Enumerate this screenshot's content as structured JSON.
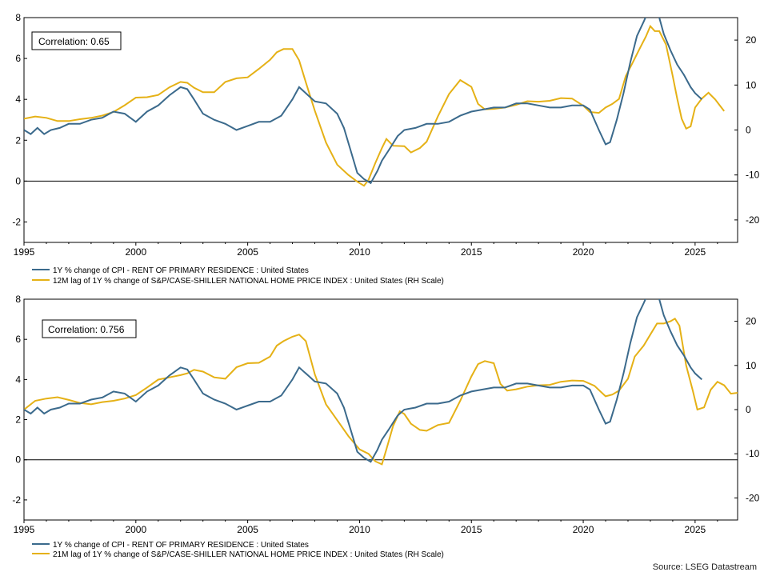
{
  "source": "Source: LSEG Datastream",
  "colors": {
    "cpi": "#3b6a8c",
    "hpi": "#e5b116"
  },
  "chart_data": [
    {
      "type": "line",
      "correlation_label": "Correlation: 0.65",
      "x_ticks": [
        "1995",
        "2000",
        "2005",
        "2010",
        "2015",
        "2020",
        "2025"
      ],
      "xlim": [
        1995,
        2026.9
      ],
      "ylim_left": [
        -3,
        8
      ],
      "ylim_right": [
        -25,
        25
      ],
      "yticks_left": [
        "-2",
        "0",
        "2",
        "4",
        "6",
        "8"
      ],
      "yticks_right": [
        "-20",
        "-10",
        "0",
        "10",
        "20"
      ],
      "zero_line": true,
      "legend_location": "bottom-left",
      "series": [
        {
          "name": "1Y % change of CPI - RENT OF PRIMARY RESIDENCE : United States",
          "axis": "left",
          "x": [
            1995.0,
            1995.3,
            1995.6,
            1995.9,
            1996.2,
            1996.6,
            1997.0,
            1997.5,
            1998.0,
            1998.5,
            1999.0,
            1999.5,
            2000.0,
            2000.5,
            2001.0,
            2001.5,
            2002.0,
            2002.3,
            2002.6,
            2003.0,
            2003.5,
            2004.0,
            2004.5,
            2005.0,
            2005.5,
            2006.0,
            2006.5,
            2007.0,
            2007.3,
            2007.7,
            2008.0,
            2008.5,
            2009.0,
            2009.3,
            2009.6,
            2009.9,
            2010.2,
            2010.5,
            2010.8,
            2011.0,
            2011.3,
            2011.7,
            2012.0,
            2012.5,
            2013.0,
            2013.5,
            2014.0,
            2014.5,
            2015.0,
            2015.5,
            2016.0,
            2016.5,
            2017.0,
            2017.5,
            2018.0,
            2018.5,
            2019.0,
            2019.5,
            2020.0,
            2020.3,
            2020.7,
            2021.0,
            2021.2,
            2021.5,
            2021.8,
            2022.1,
            2022.4,
            2022.7,
            2022.9,
            2023.0,
            2023.3,
            2023.6,
            2023.9,
            2024.2,
            2024.5,
            2024.8,
            2025.0,
            2025.3
          ],
          "y": [
            2.5,
            2.3,
            2.6,
            2.3,
            2.5,
            2.6,
            2.8,
            2.8,
            3.0,
            3.1,
            3.4,
            3.3,
            2.9,
            3.4,
            3.7,
            4.2,
            4.6,
            4.5,
            4.0,
            3.3,
            3.0,
            2.8,
            2.5,
            2.7,
            2.9,
            2.9,
            3.2,
            4.0,
            4.6,
            4.2,
            3.9,
            3.8,
            3.3,
            2.6,
            1.5,
            0.4,
            0.1,
            -0.1,
            0.5,
            1.0,
            1.5,
            2.2,
            2.5,
            2.6,
            2.8,
            2.8,
            2.9,
            3.2,
            3.4,
            3.5,
            3.6,
            3.6,
            3.8,
            3.8,
            3.7,
            3.6,
            3.6,
            3.7,
            3.7,
            3.5,
            2.5,
            1.8,
            1.9,
            3.0,
            4.3,
            5.8,
            7.1,
            7.8,
            8.3,
            8.5,
            8.4,
            7.2,
            6.4,
            5.7,
            5.2,
            4.6,
            4.3,
            4.0
          ]
        },
        {
          "name": "12M lag of 1Y % change of S&P/CASE-SHILLER NATIONAL HOME PRICE INDEX : United States (RH Scale)",
          "axis": "right",
          "x": [
            1995.0,
            1995.5,
            1996.0,
            1996.5,
            1997.0,
            1997.5,
            1998.0,
            1998.5,
            1999.0,
            1999.5,
            2000.0,
            2000.5,
            2001.0,
            2001.5,
            2002.0,
            2002.3,
            2002.6,
            2003.0,
            2003.5,
            2004.0,
            2004.5,
            2005.0,
            2005.5,
            2006.0,
            2006.3,
            2006.6,
            2007.0,
            2007.3,
            2007.6,
            2008.0,
            2008.5,
            2009.0,
            2009.5,
            2009.9,
            2010.2,
            2010.4,
            2010.7,
            2011.0,
            2011.2,
            2011.5,
            2012.0,
            2012.3,
            2012.7,
            2013.0,
            2013.5,
            2014.0,
            2014.5,
            2015.0,
            2015.3,
            2015.6,
            2016.0,
            2016.5,
            2017.0,
            2017.5,
            2018.0,
            2018.5,
            2019.0,
            2019.5,
            2020.0,
            2020.3,
            2020.7,
            2021.0,
            2021.3,
            2021.6,
            2021.9,
            2022.2,
            2022.5,
            2022.8,
            2023.0,
            2023.2,
            2023.4,
            2023.7,
            2024.0,
            2024.2,
            2024.4,
            2024.6,
            2024.8,
            2025.0,
            2025.3,
            2025.6,
            2025.9,
            2026.1,
            2026.3
          ],
          "y": [
            2.5,
            3.0,
            2.7,
            2.0,
            2.0,
            2.4,
            2.7,
            3.2,
            4.0,
            5.5,
            7.2,
            7.3,
            7.8,
            9.5,
            10.7,
            10.5,
            9.4,
            8.4,
            8.4,
            10.7,
            11.5,
            11.7,
            13.6,
            15.6,
            17.3,
            18.0,
            18.0,
            15.5,
            10.6,
            4.3,
            -2.8,
            -7.7,
            -10.0,
            -11.5,
            -12.4,
            -11.1,
            -7.4,
            -4.0,
            -2.0,
            -3.5,
            -3.6,
            -5.0,
            -4.0,
            -2.6,
            3.0,
            8.0,
            11.1,
            9.6,
            5.8,
            4.6,
            4.7,
            5.0,
            5.6,
            6.4,
            6.3,
            6.5,
            7.1,
            7.0,
            5.4,
            4.0,
            3.8,
            5.0,
            5.8,
            6.9,
            12.0,
            14.9,
            17.9,
            20.8,
            23.1,
            22.0,
            22.0,
            19.0,
            12.0,
            7.0,
            2.5,
            0.3,
            0.8,
            5.0,
            7.0,
            8.3,
            6.8,
            5.5,
            4.2
          ]
        }
      ]
    },
    {
      "type": "line",
      "correlation_label": "Correlation: 0.756",
      "x_ticks": [
        "1995",
        "2000",
        "2005",
        "2010",
        "2015",
        "2020",
        "2025"
      ],
      "xlim": [
        1995,
        2026.9
      ],
      "ylim_left": [
        -3,
        8
      ],
      "ylim_right": [
        -25,
        25
      ],
      "yticks_left": [
        "-2",
        "0",
        "2",
        "4",
        "6",
        "8"
      ],
      "yticks_right": [
        "-20",
        "-10",
        "0",
        "10",
        "20"
      ],
      "zero_line": true,
      "legend_location": "bottom-left",
      "series": [
        {
          "name": "1Y % change of CPI - RENT OF PRIMARY RESIDENCE : United States",
          "axis": "left",
          "x": [
            1995.0,
            1995.3,
            1995.6,
            1995.9,
            1996.2,
            1996.6,
            1997.0,
            1997.5,
            1998.0,
            1998.5,
            1999.0,
            1999.5,
            2000.0,
            2000.5,
            2001.0,
            2001.5,
            2002.0,
            2002.3,
            2002.6,
            2003.0,
            2003.5,
            2004.0,
            2004.5,
            2005.0,
            2005.5,
            2006.0,
            2006.5,
            2007.0,
            2007.3,
            2007.7,
            2008.0,
            2008.5,
            2009.0,
            2009.3,
            2009.6,
            2009.9,
            2010.2,
            2010.5,
            2010.8,
            2011.0,
            2011.3,
            2011.7,
            2012.0,
            2012.5,
            2013.0,
            2013.5,
            2014.0,
            2014.5,
            2015.0,
            2015.5,
            2016.0,
            2016.5,
            2017.0,
            2017.5,
            2018.0,
            2018.5,
            2019.0,
            2019.5,
            2020.0,
            2020.3,
            2020.7,
            2021.0,
            2021.2,
            2021.5,
            2021.8,
            2022.1,
            2022.4,
            2022.7,
            2022.9,
            2023.0,
            2023.3,
            2023.6,
            2023.9,
            2024.2,
            2024.5,
            2024.8,
            2025.0,
            2025.3
          ],
          "y": [
            2.5,
            2.3,
            2.6,
            2.3,
            2.5,
            2.6,
            2.8,
            2.8,
            3.0,
            3.1,
            3.4,
            3.3,
            2.9,
            3.4,
            3.7,
            4.2,
            4.6,
            4.5,
            4.0,
            3.3,
            3.0,
            2.8,
            2.5,
            2.7,
            2.9,
            2.9,
            3.2,
            4.0,
            4.6,
            4.2,
            3.9,
            3.8,
            3.3,
            2.6,
            1.5,
            0.4,
            0.1,
            -0.1,
            0.5,
            1.0,
            1.5,
            2.2,
            2.5,
            2.6,
            2.8,
            2.8,
            2.9,
            3.2,
            3.4,
            3.5,
            3.6,
            3.6,
            3.8,
            3.8,
            3.7,
            3.6,
            3.6,
            3.7,
            3.7,
            3.5,
            2.5,
            1.8,
            1.9,
            3.0,
            4.3,
            5.8,
            7.1,
            7.8,
            8.3,
            8.5,
            8.4,
            7.2,
            6.4,
            5.7,
            5.2,
            4.6,
            4.3,
            4.0
          ]
        },
        {
          "name": "21M lag of 1Y % change of S&P/CASE-SHILLER NATIONAL HOME PRICE INDEX : United States (RH Scale)",
          "axis": "right",
          "x": [
            1995.0,
            1995.5,
            1996.0,
            1996.5,
            1997.0,
            1997.5,
            1998.0,
            1998.5,
            1999.0,
            1999.5,
            2000.0,
            2000.5,
            2001.0,
            2001.5,
            2002.0,
            2002.3,
            2002.6,
            2003.0,
            2003.5,
            2004.0,
            2004.5,
            2005.0,
            2005.5,
            2006.0,
            2006.3,
            2006.6,
            2007.0,
            2007.3,
            2007.6,
            2008.0,
            2008.5,
            2009.0,
            2009.5,
            2010.0,
            2010.4,
            2010.7,
            2011.0,
            2011.2,
            2011.5,
            2011.8,
            2012.0,
            2012.3,
            2012.7,
            2013.0,
            2013.5,
            2014.0,
            2014.5,
            2015.0,
            2015.3,
            2015.6,
            2016.0,
            2016.3,
            2016.6,
            2017.0,
            2017.5,
            2018.0,
            2018.5,
            2019.0,
            2019.5,
            2020.0,
            2020.5,
            2021.0,
            2021.3,
            2021.6,
            2022.0,
            2022.3,
            2022.7,
            2023.0,
            2023.3,
            2023.6,
            2023.9,
            2024.1,
            2024.3,
            2024.6,
            2024.9,
            2025.1,
            2025.4,
            2025.7,
            2026.0,
            2026.3,
            2026.6,
            2026.9
          ],
          "y": [
            0.0,
            2.0,
            2.5,
            2.8,
            2.2,
            1.5,
            1.2,
            1.7,
            2.0,
            2.5,
            3.3,
            5.0,
            6.8,
            7.3,
            7.8,
            8.2,
            9.0,
            8.6,
            7.3,
            7.0,
            9.6,
            10.5,
            10.6,
            12.0,
            14.5,
            15.5,
            16.5,
            17.0,
            15.5,
            8.0,
            1.2,
            -2.4,
            -6.0,
            -9.0,
            -10.0,
            -11.7,
            -12.4,
            -9.0,
            -3.7,
            -0.4,
            -1.0,
            -3.2,
            -4.6,
            -4.8,
            -3.5,
            -3.0,
            2.0,
            7.5,
            10.3,
            11.0,
            10.5,
            5.8,
            4.3,
            4.6,
            5.2,
            5.5,
            5.6,
            6.3,
            6.6,
            6.5,
            5.4,
            3.0,
            3.4,
            4.3,
            7.0,
            12.0,
            14.5,
            17.0,
            19.5,
            19.5,
            20.0,
            20.6,
            19.0,
            10.0,
            4.2,
            0.0,
            0.5,
            4.5,
            6.3,
            5.5,
            3.6,
            3.8
          ]
        }
      ]
    }
  ]
}
